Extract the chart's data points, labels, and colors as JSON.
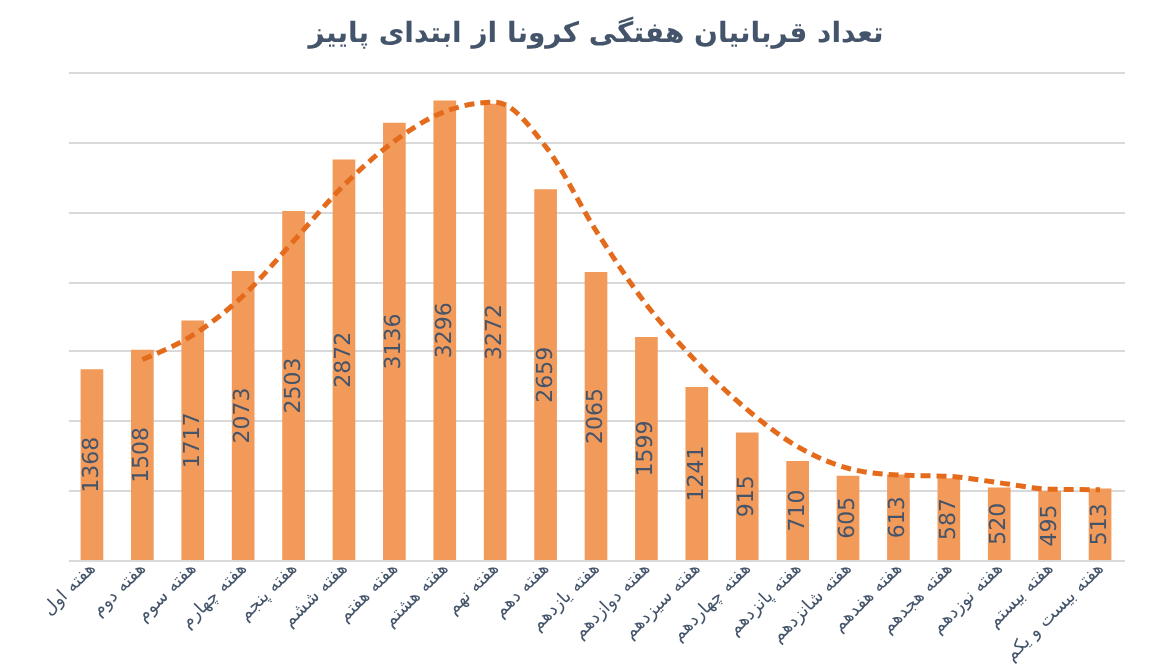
{
  "chart_data": {
    "type": "bar",
    "title": "تعداد قربانیان هفتگی کرونا از ابتدای پاییز",
    "categories": [
      "هفته اول",
      "هفته دوم",
      "هفته سوم",
      "هفته چهارم",
      "هفته پنجم",
      "هفته ششم",
      "هفته هفتم",
      "هفته هشتم",
      "هفته نهم",
      "هفته دهم",
      "هفته یازدهم",
      "هفته دوازدهم",
      "هفته سیزدهم",
      "هفته چهاردهم",
      "هفته پانزدهم",
      "هفته شانزدهم",
      "هفته هفدهم",
      "هفته هجدهم",
      "هفته نوزدهم",
      "هفته بیستم",
      "هفته بیست و یکم"
    ],
    "series": [
      {
        "color": "#f29a5a",
        "values": [
          1368,
          1508,
          1717,
          2073,
          2503,
          2872,
          3136,
          3296,
          3272,
          2659,
          2065,
          1599,
          1241,
          915,
          710,
          605,
          613,
          587,
          520,
          495,
          513
        ],
        "value_labels": [
          "1368",
          "1508",
          "1717",
          "2073",
          "2503",
          "2872",
          "3136",
          "3296",
          "3272",
          "2659",
          "2065",
          "1599",
          "1241",
          "915",
          "710",
          "605",
          "613",
          "587",
          "520",
          "495",
          "513"
        ]
      },
      {
        "type": "line",
        "color": "#e46a1c",
        "line_style": "dashed",
        "values": [
          null,
          1438,
          1613,
          1895,
          2288,
          2688,
          3004,
          3216,
          3284,
          2966,
          2362,
          1832,
          1420,
          1078,
          813,
          658,
          609,
          600,
          554,
          508,
          504
        ]
      }
    ],
    "grid": "y",
    "tick_labels": "x"
  }
}
